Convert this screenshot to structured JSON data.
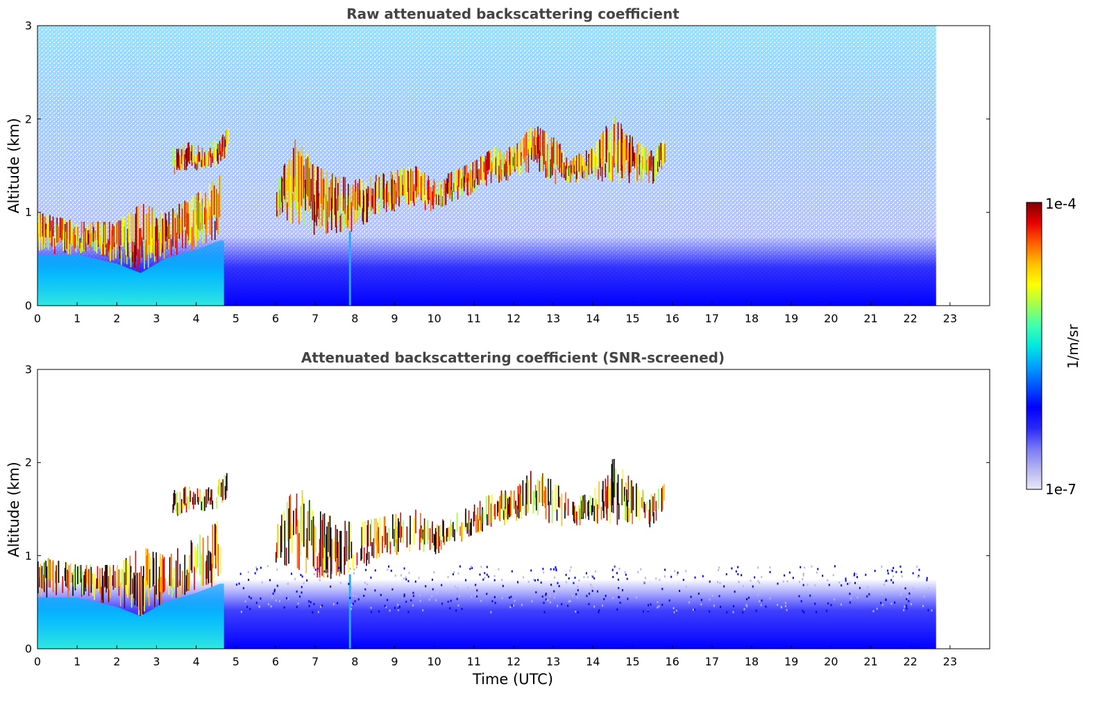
{
  "chart_data": [
    {
      "type": "heatmap",
      "title": "Raw attenuated backscattering coefficient",
      "xlabel": "",
      "ylabel": "Altitude (km)",
      "xlim": [
        0,
        24
      ],
      "ylim": [
        0,
        3
      ],
      "x_ticks": [
        "0",
        "1",
        "2",
        "3",
        "4",
        "5",
        "6",
        "7",
        "8",
        "9",
        "10",
        "11",
        "12",
        "13",
        "14",
        "15",
        "16",
        "17",
        "18",
        "19",
        "20",
        "21",
        "22",
        "23"
      ],
      "y_ticks": [
        "0",
        "1",
        "2",
        "3"
      ],
      "data_end_hour": 22.65,
      "cloud_layers": [
        {
          "t": [
            0,
            1.0,
            2.0,
            2.6,
            3.2,
            4.0,
            4.6
          ],
          "base_km": [
            0.55,
            0.55,
            0.45,
            0.35,
            0.5,
            0.6,
            0.7
          ],
          "top_km": [
            1.0,
            0.9,
            0.9,
            1.1,
            1.0,
            1.2,
            1.4
          ]
        },
        {
          "t": [
            3.4,
            3.8,
            4.2,
            4.5,
            4.8
          ],
          "base_km": [
            1.4,
            1.45,
            1.45,
            1.5,
            1.6
          ],
          "top_km": [
            1.7,
            1.75,
            1.7,
            1.8,
            1.9
          ]
        },
        {
          "t": [
            6.0,
            6.5,
            7.0,
            7.5,
            8.0,
            8.5,
            9.0,
            9.5,
            10.0,
            10.5,
            11.0,
            11.5,
            12.0,
            12.5,
            13.0,
            13.5,
            14.0,
            14.5,
            15.0,
            15.5,
            15.8
          ],
          "base_km": [
            0.9,
            0.85,
            0.75,
            0.75,
            0.8,
            0.95,
            1.0,
            1.05,
            1.0,
            1.1,
            1.2,
            1.3,
            1.35,
            1.45,
            1.3,
            1.3,
            1.35,
            1.3,
            1.3,
            1.3,
            1.5
          ],
          "top_km": [
            1.3,
            1.8,
            1.5,
            1.4,
            1.35,
            1.4,
            1.45,
            1.5,
            1.35,
            1.45,
            1.55,
            1.7,
            1.7,
            1.95,
            1.8,
            1.6,
            1.7,
            2.05,
            1.8,
            1.65,
            1.8
          ]
        }
      ]
    },
    {
      "type": "heatmap",
      "title": "Attenuated backscattering coefficient (SNR-screened)",
      "xlabel": "Time (UTC)",
      "ylabel": "Altitude (km)",
      "xlim": [
        0,
        24
      ],
      "ylim": [
        0,
        3
      ],
      "x_ticks": [
        "0",
        "1",
        "2",
        "3",
        "4",
        "5",
        "6",
        "7",
        "8",
        "9",
        "10",
        "11",
        "12",
        "13",
        "14",
        "15",
        "16",
        "17",
        "18",
        "19",
        "20",
        "21",
        "22",
        "23"
      ],
      "y_ticks": [
        "0",
        "1",
        "2",
        "3"
      ],
      "data_end_hour": 22.65
    }
  ],
  "colorbar": {
    "label": "1/m/sr",
    "max_label": "1e-4",
    "min_label": "1e-7",
    "scale": "log",
    "range": [
      1e-07,
      0.0001
    ],
    "colors": [
      "#e8e8f8",
      "#b4b4f0",
      "#7878f4",
      "#2828f8",
      "#0000ff",
      "#0050ff",
      "#00a0ff",
      "#00e8e0",
      "#40ffb0",
      "#a0ff50",
      "#ffff00",
      "#ffc000",
      "#ff6000",
      "#e80000",
      "#800000"
    ]
  }
}
